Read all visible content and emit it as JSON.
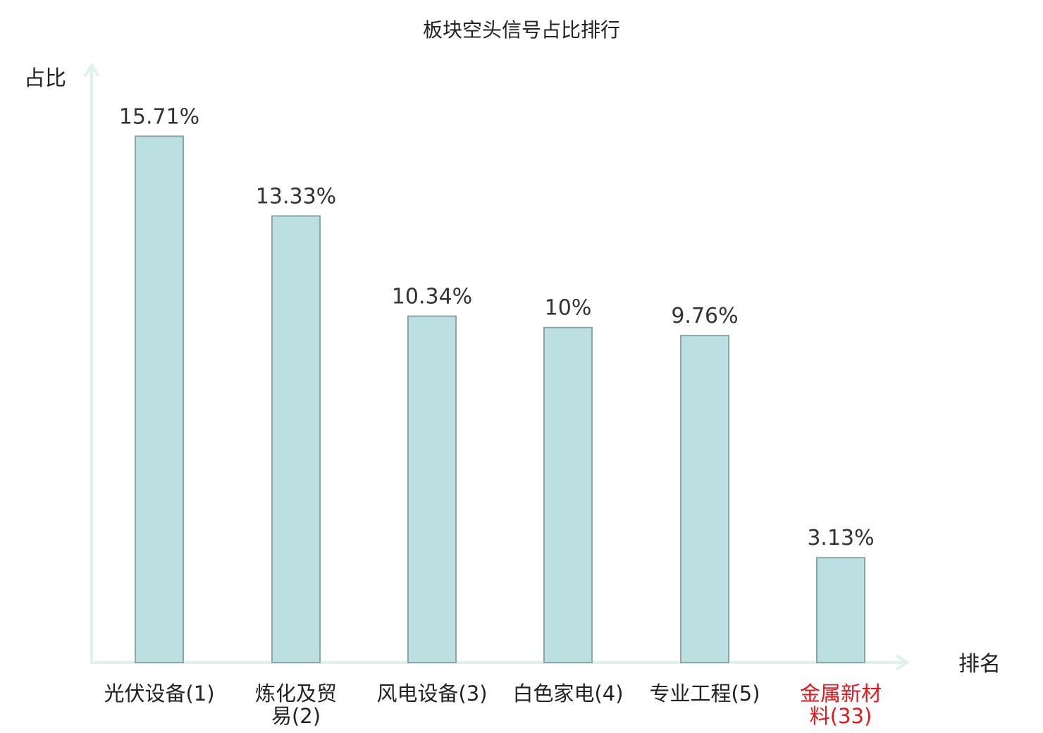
{
  "chart_data": {
    "type": "bar",
    "title": "板块空头信号占比排行",
    "ylabel": "占比",
    "xlabel": "排名",
    "categories": [
      [
        "光伏设备(1)"
      ],
      [
        "炼化及贸",
        "易(2)"
      ],
      [
        "风电设备(3)"
      ],
      [
        "白色家电(4)"
      ],
      [
        "专业工程(5)"
      ],
      [
        "金属新材",
        "料(33)"
      ]
    ],
    "values": [
      15.71,
      13.33,
      10.34,
      10,
      9.76,
      3.13
    ],
    "value_labels": [
      "15.71%",
      "13.33%",
      "10.34%",
      "10%",
      "9.76%",
      "3.13%"
    ],
    "highlight_index": 5,
    "ylim": [
      0,
      17.8
    ],
    "grid": false,
    "colors": {
      "bar_fill": "#bce0e2",
      "bar_stroke": "#8aa6a8",
      "axis": "#dff1ee",
      "highlight_text": "#e0191e"
    }
  }
}
